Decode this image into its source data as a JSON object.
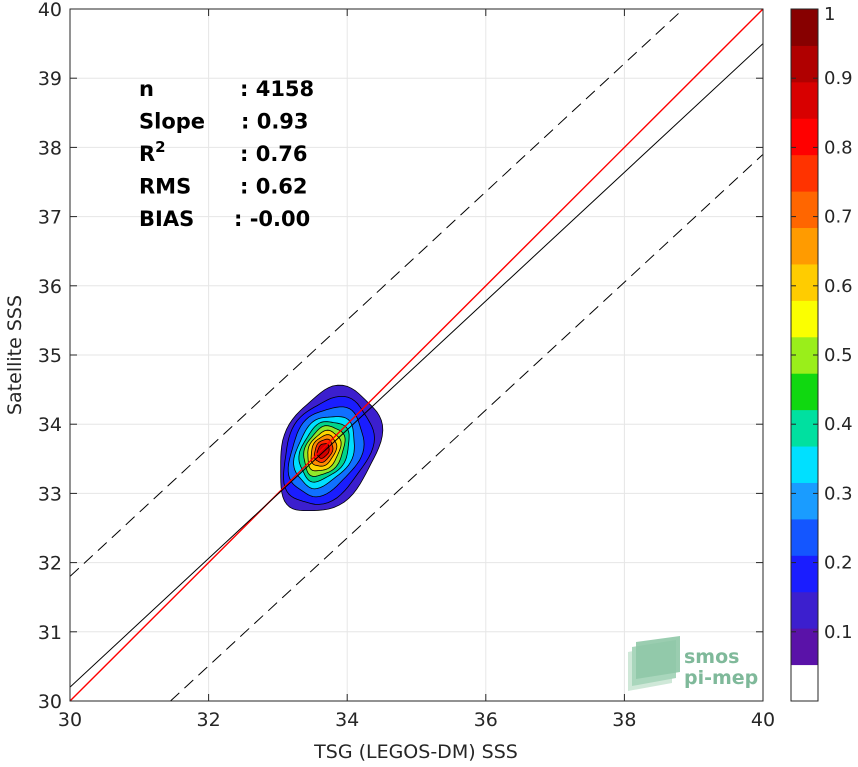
{
  "chart_data": {
    "type": "scatter-density-contour",
    "xlabel": "TSG (LEGOS-DM) SSS",
    "ylabel": "Satellite SSS",
    "xlim": [
      30,
      40
    ],
    "ylim": [
      30,
      40
    ],
    "xticks": [
      30,
      32,
      34,
      36,
      38,
      40
    ],
    "yticks": [
      30,
      31,
      32,
      33,
      34,
      35,
      36,
      37,
      38,
      39,
      40
    ],
    "grid": true,
    "stats": [
      {
        "label": "n",
        "value": ": 4158"
      },
      {
        "label": "Slope",
        "value": ": 0.93"
      },
      {
        "label": "R",
        "sup": "2",
        "value": ": 0.76"
      },
      {
        "label": "RMS",
        "value": ": 0.62"
      },
      {
        "label": "BIAS",
        "value": ": -0.00"
      }
    ],
    "reference_lines": [
      {
        "name": "one-to-one",
        "color": "#ff0000",
        "style": "solid",
        "slope": 1,
        "intercept": 0
      },
      {
        "name": "regression",
        "color": "#000000",
        "style": "solid",
        "points": [
          [
            30,
            30.2
          ],
          [
            40,
            39.5
          ]
        ]
      },
      {
        "name": "upper-bound",
        "color": "#000000",
        "style": "dashed",
        "points": [
          [
            30,
            31.8
          ],
          [
            38.85,
            40
          ]
        ]
      },
      {
        "name": "lower-bound",
        "color": "#000000",
        "style": "dashed",
        "points": [
          [
            31.45,
            30
          ],
          [
            40,
            37.9
          ]
        ]
      }
    ],
    "density_center": [
      33.65,
      33.62
    ],
    "density_contours": [
      {
        "level": 0.05,
        "color": "#3c1fce",
        "ax": 0.82,
        "bx": 0.62,
        "ay": 0.9,
        "by": 0.9
      },
      {
        "level": 0.15,
        "color": "#1a1dff",
        "ax": 0.71,
        "bx": 0.56,
        "ay": 0.75,
        "by": 0.78
      },
      {
        "level": 0.25,
        "color": "#1070ff",
        "ax": 0.58,
        "bx": 0.48,
        "ay": 0.62,
        "by": 0.65
      },
      {
        "level": 0.35,
        "color": "#00e0ff",
        "ax": 0.46,
        "bx": 0.4,
        "ay": 0.5,
        "by": 0.53
      },
      {
        "level": 0.45,
        "color": "#00d48a",
        "ax": 0.38,
        "bx": 0.33,
        "ay": 0.42,
        "by": 0.44
      },
      {
        "level": 0.55,
        "color": "#8fe82a",
        "ax": 0.31,
        "bx": 0.27,
        "ay": 0.35,
        "by": 0.37
      },
      {
        "level": 0.65,
        "color": "#ffd400",
        "ax": 0.25,
        "bx": 0.22,
        "ay": 0.28,
        "by": 0.3
      },
      {
        "level": 0.75,
        "color": "#ff8a00",
        "ax": 0.19,
        "bx": 0.17,
        "ay": 0.22,
        "by": 0.23
      },
      {
        "level": 0.85,
        "color": "#ff2a00",
        "ax": 0.14,
        "bx": 0.12,
        "ay": 0.16,
        "by": 0.17
      },
      {
        "level": 0.95,
        "color": "#d00000",
        "ax": 0.09,
        "bx": 0.08,
        "ay": 0.1,
        "by": 0.11
      }
    ],
    "colorbar": {
      "range": [
        0,
        1
      ],
      "ticks": [
        0.1,
        0.2,
        0.3,
        0.4,
        0.5,
        0.6,
        0.7,
        0.8,
        0.9,
        1
      ],
      "tick_labels": [
        "0.1",
        "0.2",
        "0.3",
        "0.4",
        "0.5",
        "0.6",
        "0.7",
        "0.8",
        "0.9",
        "1"
      ],
      "colors": [
        "#ffffff",
        "#5a12a8",
        "#3c1fce",
        "#1a1dff",
        "#1456ff",
        "#1a9cff",
        "#00e0ff",
        "#00e0a0",
        "#10d810",
        "#9aee1a",
        "#fbff00",
        "#ffcc00",
        "#ff9b00",
        "#ff6600",
        "#ff3300",
        "#ff0000",
        "#d80000",
        "#b00000",
        "#870000"
      ]
    }
  },
  "logo": {
    "line1": "smos",
    "line2": "pi-mep"
  }
}
